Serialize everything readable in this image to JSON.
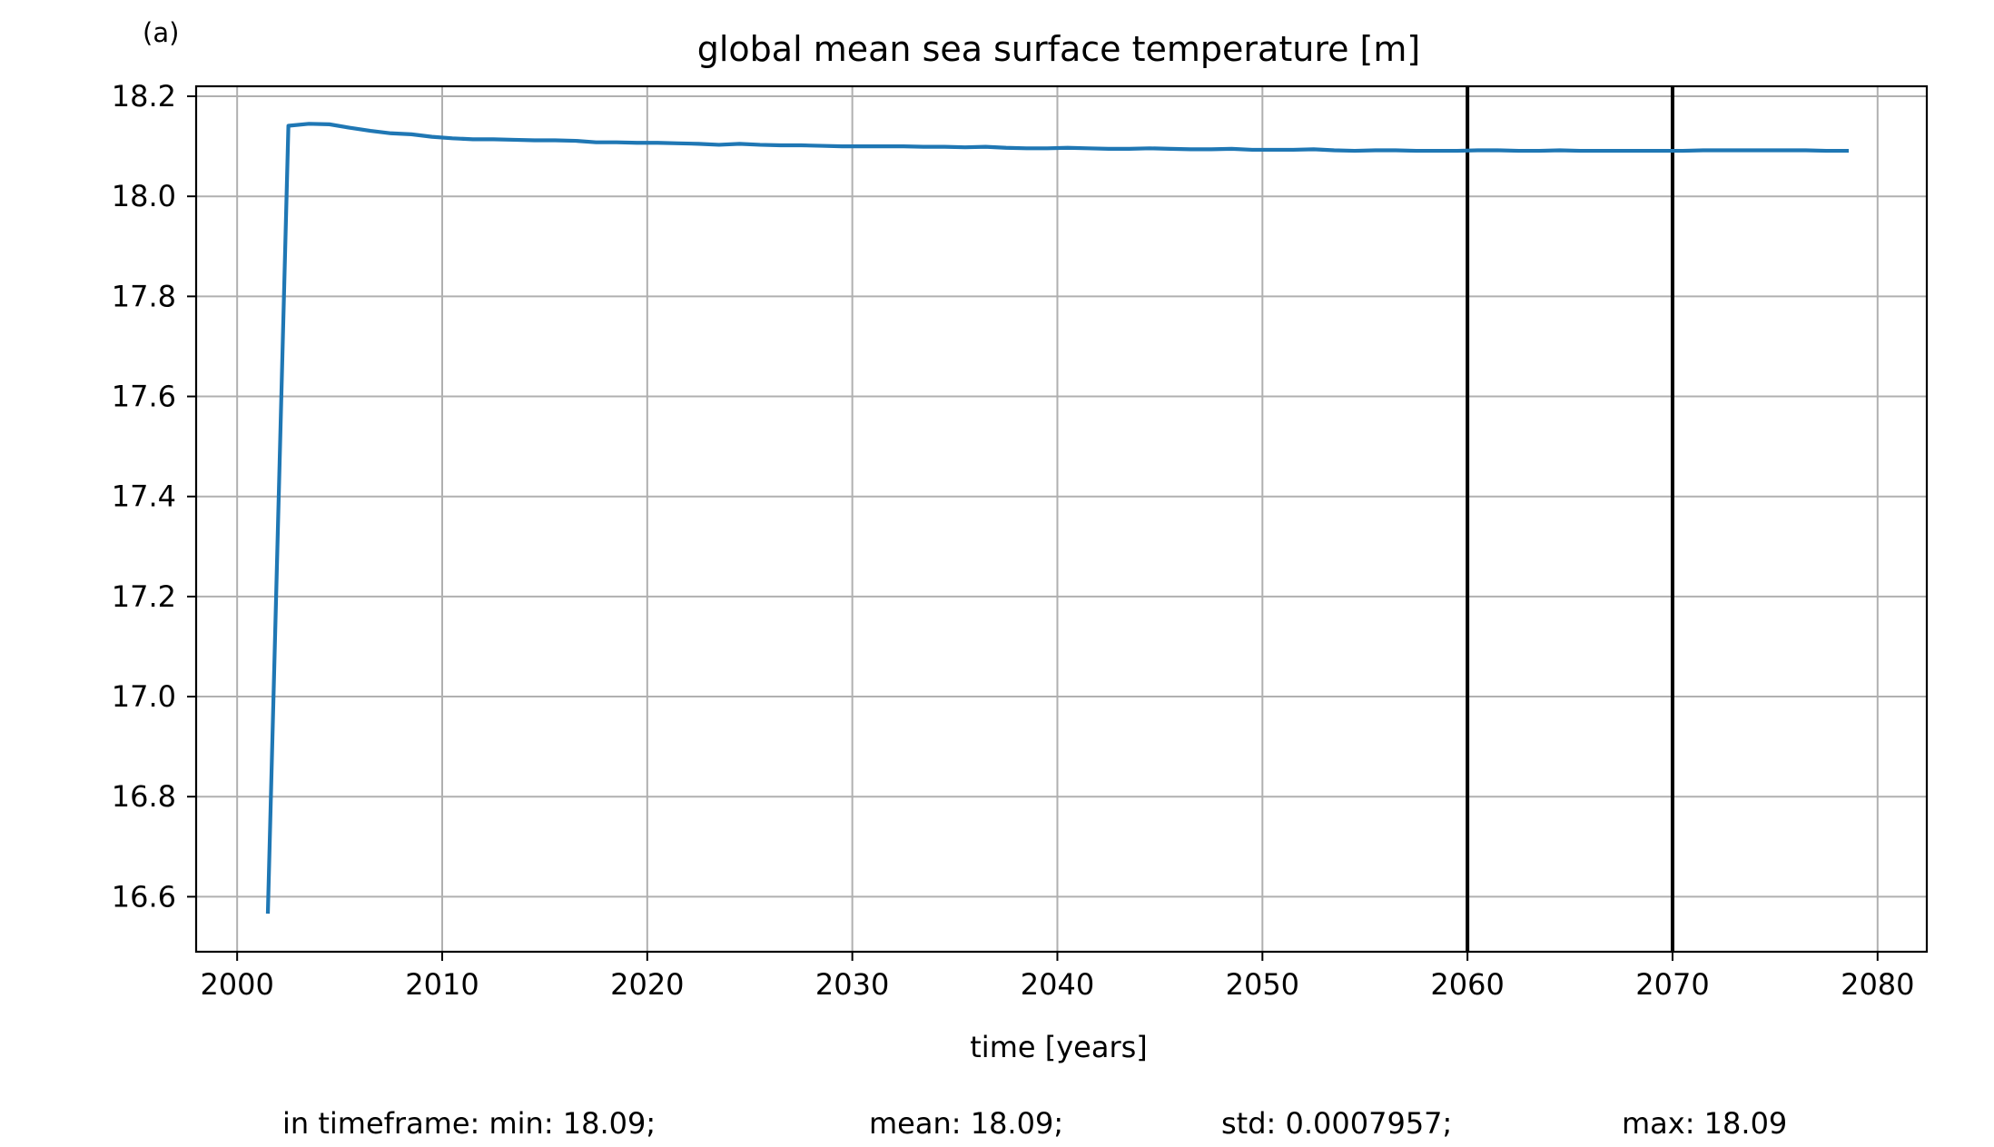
{
  "chart_data": {
    "type": "line",
    "panel_label": "(a)",
    "title": "global mean sea surface temperature [m]",
    "xlabel": "time [years]",
    "ylabel": "",
    "xlim": [
      1998,
      2082.4
    ],
    "ylim": [
      16.49,
      18.22
    ],
    "xticks": [
      2000,
      2010,
      2020,
      2030,
      2040,
      2050,
      2060,
      2070,
      2080
    ],
    "xtick_labels": [
      "2000",
      "2010",
      "2020",
      "2030",
      "2040",
      "2050",
      "2060",
      "2070",
      "2080"
    ],
    "yticks": [
      16.6,
      16.8,
      17.0,
      17.2,
      17.4,
      17.6,
      17.8,
      18.0,
      18.2
    ],
    "ytick_labels": [
      "16.6",
      "16.8",
      "17.0",
      "17.2",
      "17.4",
      "17.6",
      "17.8",
      "18.0",
      "18.2"
    ],
    "grid": true,
    "line_color": "#1f77b4",
    "vline_color": "#000000",
    "vlines": [
      2060,
      2070
    ],
    "series": [
      {
        "x": [
          2001.5,
          2002.5,
          2003.5,
          2004.5,
          2005.5,
          2006.5,
          2007.5,
          2008.5,
          2009.5,
          2010.5,
          2011.5,
          2012.5,
          2013.5,
          2014.5,
          2015.5,
          2016.5,
          2017.5,
          2018.5,
          2019.5,
          2020.5,
          2021.5,
          2022.5,
          2023.5,
          2024.5,
          2025.5,
          2026.5,
          2027.5,
          2028.5,
          2029.5,
          2030.5,
          2031.5,
          2032.5,
          2033.5,
          2034.5,
          2035.5,
          2036.5,
          2037.5,
          2038.5,
          2039.5,
          2040.5,
          2041.5,
          2042.5,
          2043.5,
          2044.5,
          2045.5,
          2046.5,
          2047.5,
          2048.5,
          2049.5,
          2050.5,
          2051.5,
          2052.5,
          2053.5,
          2054.5,
          2055.5,
          2056.5,
          2057.5,
          2058.5,
          2059.5,
          2060.5,
          2061.5,
          2062.5,
          2063.5,
          2064.5,
          2065.5,
          2066.5,
          2067.5,
          2068.5,
          2069.5,
          2070.5,
          2071.5,
          2072.5,
          2073.5,
          2074.5,
          2075.5,
          2076.5,
          2077.5,
          2078.5
        ],
        "values": [
          16.57,
          18.141,
          18.145,
          18.144,
          18.137,
          18.131,
          18.126,
          18.124,
          18.119,
          18.116,
          18.114,
          18.114,
          18.113,
          18.112,
          18.112,
          18.111,
          18.108,
          18.108,
          18.107,
          18.107,
          18.106,
          18.105,
          18.103,
          18.105,
          18.103,
          18.102,
          18.102,
          18.101,
          18.1,
          18.1,
          18.1,
          18.1,
          18.099,
          18.099,
          18.098,
          18.099,
          18.097,
          18.096,
          18.096,
          18.097,
          18.096,
          18.095,
          18.095,
          18.096,
          18.095,
          18.094,
          18.094,
          18.095,
          18.093,
          18.093,
          18.093,
          18.094,
          18.092,
          18.091,
          18.092,
          18.092,
          18.091,
          18.091,
          18.091,
          18.092,
          18.092,
          18.091,
          18.091,
          18.092,
          18.091,
          18.091,
          18.091,
          18.091,
          18.091,
          18.091,
          18.092,
          18.092,
          18.092,
          18.092,
          18.092,
          18.092,
          18.091,
          18.091
        ]
      }
    ]
  },
  "stats": {
    "min": "in timeframe: min: 18.09;",
    "mean": "mean: 18.09;",
    "std": "std: 0.0007957;",
    "max": "max: 18.09"
  }
}
